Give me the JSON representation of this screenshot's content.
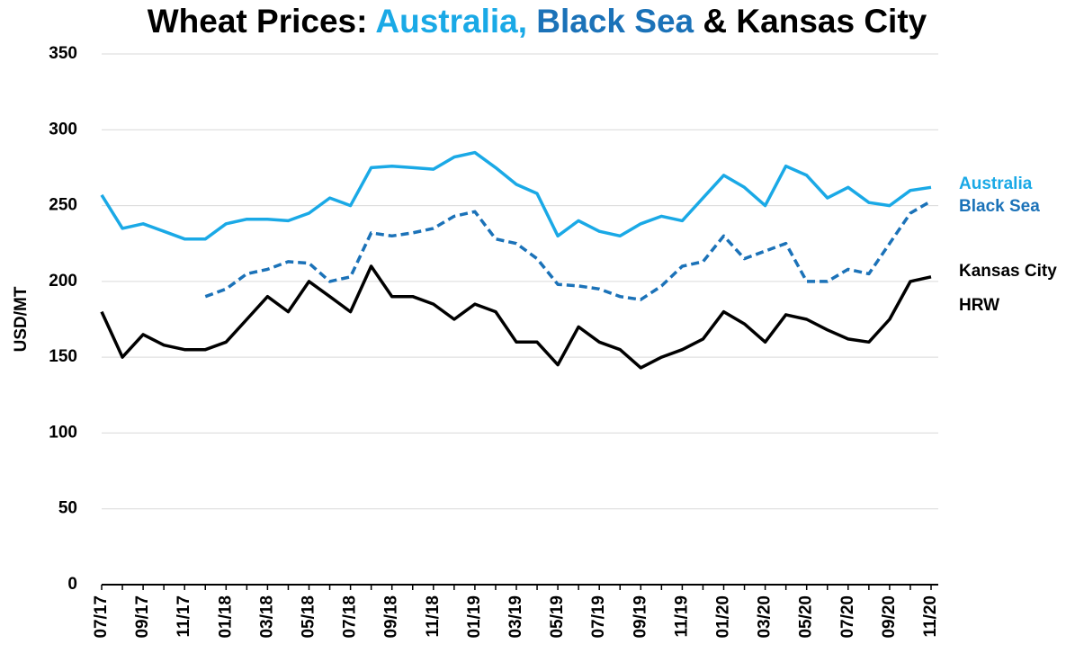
{
  "chart_data": {
    "type": "line",
    "title": [
      "Wheat Prices:",
      "Australia,",
      "Black Sea",
      "& Kansas City"
    ],
    "y_label": "USD/MT",
    "categories": [
      "07/17",
      null,
      "09/17",
      null,
      "11/17",
      null,
      "01/18",
      null,
      "03/18",
      null,
      "05/18",
      null,
      "07/18",
      null,
      "09/18",
      null,
      "11/18",
      null,
      "01/19",
      null,
      "03/19",
      null,
      "05/19",
      null,
      "07/19",
      null,
      "09/19",
      null,
      "11/19",
      null,
      "01/20",
      null,
      "03/20",
      null,
      "05/20",
      null,
      "07/20",
      null,
      "09/20",
      null,
      "11/20"
    ],
    "series": [
      {
        "name": "Australia",
        "color": "#1aa9e6",
        "dash": false,
        "values": [
          257,
          235,
          238,
          233,
          228,
          228,
          238,
          241,
          241,
          240,
          245,
          255,
          250,
          275,
          276,
          275,
          274,
          282,
          285,
          275,
          264,
          258,
          230,
          240,
          233,
          230,
          238,
          243,
          240,
          255,
          270,
          262,
          250,
          276,
          270,
          255,
          262,
          252,
          250,
          260,
          262
        ]
      },
      {
        "name": "Black Sea",
        "color": "#1b72b8",
        "dash": true,
        "values": [
          null,
          null,
          null,
          null,
          null,
          190,
          195,
          205,
          208,
          213,
          212,
          200,
          203,
          232,
          230,
          232,
          235,
          243,
          246,
          228,
          225,
          215,
          198,
          197,
          195,
          190,
          188,
          197,
          210,
          213,
          230,
          215,
          220,
          225,
          200,
          200,
          208,
          205,
          225,
          245,
          253
        ]
      },
      {
        "name": "Kansas City HRW",
        "color": "#000000",
        "dash": false,
        "values": [
          180,
          150,
          165,
          158,
          155,
          155,
          160,
          175,
          190,
          180,
          200,
          190,
          180,
          210,
          190,
          190,
          185,
          175,
          185,
          180,
          160,
          160,
          145,
          170,
          160,
          155,
          143,
          150,
          155,
          162,
          180,
          172,
          160,
          178,
          175,
          168,
          162,
          160,
          175,
          200,
          203
        ]
      }
    ],
    "ylim": [
      0,
      350
    ],
    "yticks": [
      0,
      50,
      100,
      150,
      200,
      250,
      300,
      350
    ],
    "grid": true
  }
}
